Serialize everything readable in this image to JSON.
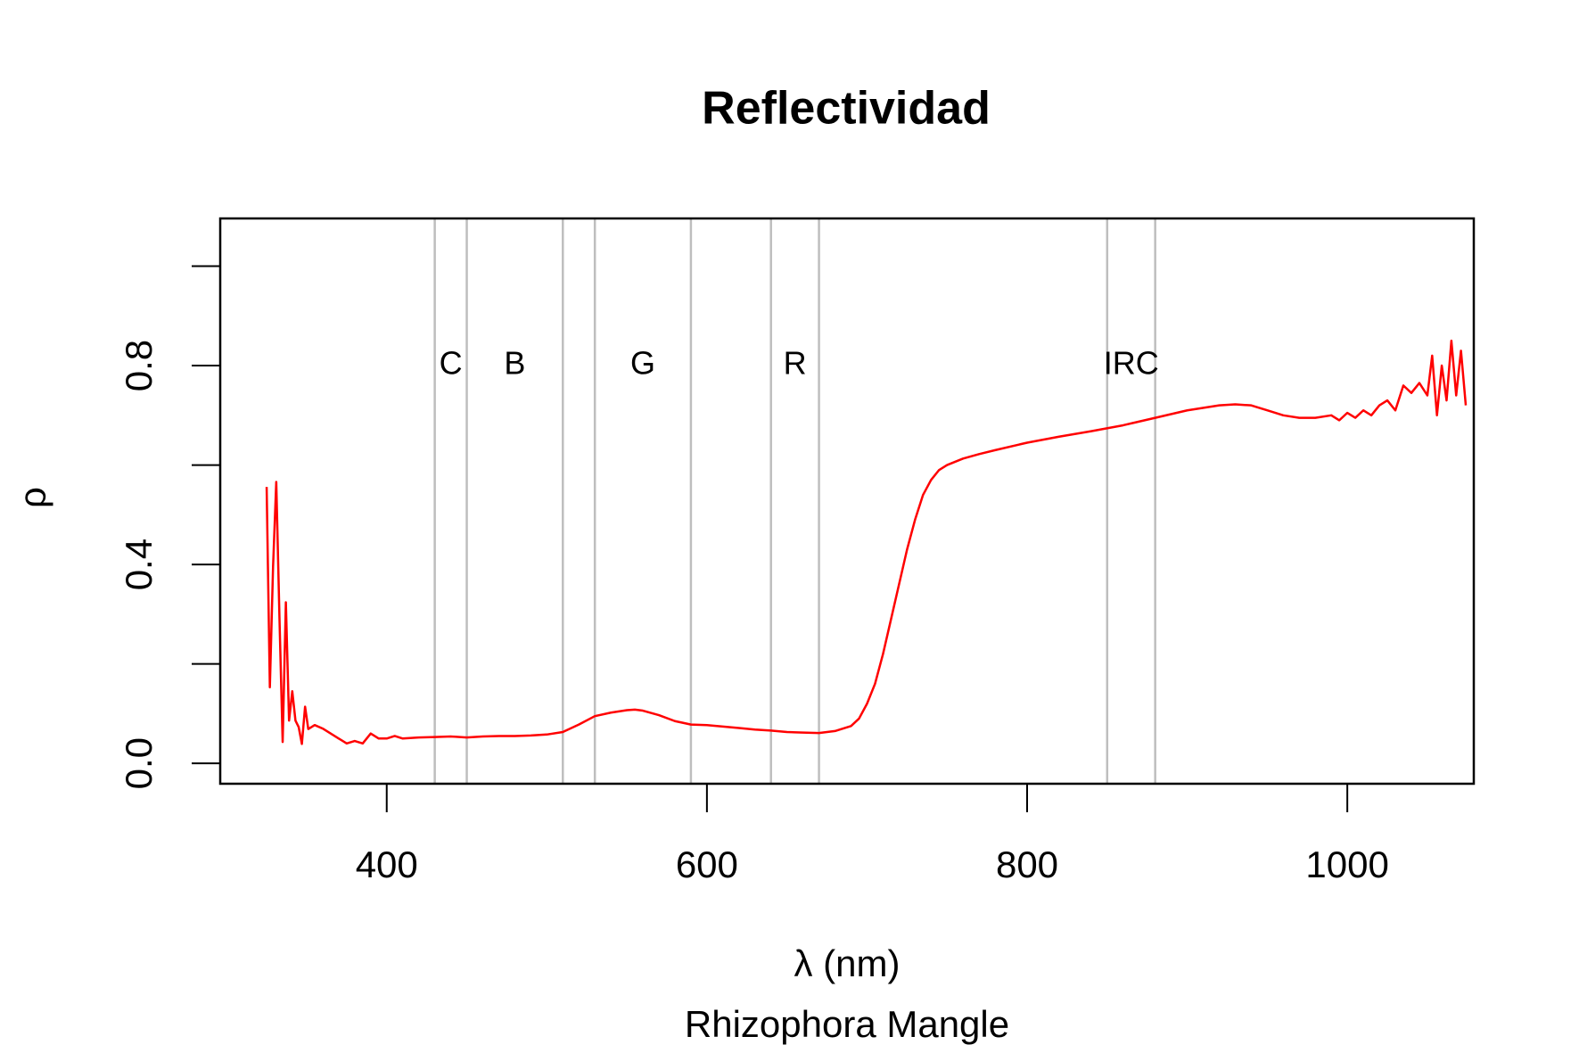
{
  "chart_data": {
    "type": "line",
    "title": "Reflectividad",
    "xlabel": "λ (nm)",
    "ylabel": "ρ",
    "subtitle": "Rhizophora Mangle",
    "color": "#ff0000",
    "xlim": [
      296,
      1079
    ],
    "ylim": [
      -0.041,
      1.096
    ],
    "xticks": [
      400,
      600,
      800,
      1000
    ],
    "yticks": [
      {
        "value": 0,
        "label": "0.0"
      },
      {
        "value": 0.2,
        "label": null
      },
      0.4,
      {
        "value": 0.6,
        "label": null
      },
      0.8,
      {
        "value": 1.0,
        "label": null
      }
    ],
    "vlines": [
      430,
      450,
      510,
      530,
      590,
      640,
      670,
      850,
      880
    ],
    "vline_color": "#bebebe",
    "annotations": [
      {
        "label": "C",
        "x": 440,
        "y": 0.8
      },
      {
        "label": "B",
        "x": 480,
        "y": 0.8
      },
      {
        "label": "G",
        "x": 560,
        "y": 0.8
      },
      {
        "label": "R",
        "x": 655,
        "y": 0.8
      },
      {
        "label": "IRC",
        "x": 865,
        "y": 0.8
      }
    ],
    "x": [
      325,
      327,
      329,
      331,
      333,
      335,
      337,
      339,
      341,
      343,
      345,
      347,
      349,
      351,
      355,
      360,
      365,
      370,
      375,
      380,
      385,
      390,
      395,
      400,
      405,
      410,
      420,
      430,
      440,
      450,
      460,
      470,
      480,
      490,
      500,
      510,
      520,
      530,
      540,
      550,
      555,
      560,
      570,
      580,
      590,
      600,
      610,
      620,
      630,
      640,
      650,
      660,
      670,
      680,
      690,
      695,
      700,
      705,
      710,
      715,
      720,
      725,
      730,
      735,
      740,
      745,
      750,
      760,
      770,
      780,
      800,
      820,
      840,
      860,
      880,
      900,
      920,
      930,
      940,
      950,
      960,
      970,
      980,
      990,
      995,
      1000,
      1005,
      1010,
      1015,
      1020,
      1025,
      1030,
      1035,
      1040,
      1045,
      1050,
      1053,
      1056,
      1059,
      1062,
      1065,
      1068,
      1071,
      1074
    ],
    "values": [
      0.556,
      0.153,
      0.395,
      0.566,
      0.293,
      0.043,
      0.324,
      0.086,
      0.145,
      0.086,
      0.073,
      0.039,
      0.114,
      0.069,
      0.077,
      0.07,
      0.06,
      0.05,
      0.04,
      0.045,
      0.04,
      0.06,
      0.05,
      0.05,
      0.055,
      0.05,
      0.052,
      0.053,
      0.054,
      0.052,
      0.054,
      0.055,
      0.055,
      0.056,
      0.058,
      0.063,
      0.078,
      0.095,
      0.102,
      0.107,
      0.108,
      0.106,
      0.097,
      0.085,
      0.078,
      0.077,
      0.074,
      0.071,
      0.068,
      0.066,
      0.063,
      0.062,
      0.061,
      0.065,
      0.075,
      0.09,
      0.12,
      0.16,
      0.22,
      0.29,
      0.36,
      0.43,
      0.49,
      0.54,
      0.57,
      0.59,
      0.6,
      0.613,
      0.622,
      0.63,
      0.645,
      0.657,
      0.668,
      0.68,
      0.695,
      0.71,
      0.72,
      0.722,
      0.72,
      0.71,
      0.7,
      0.695,
      0.695,
      0.7,
      0.69,
      0.705,
      0.695,
      0.71,
      0.7,
      0.72,
      0.73,
      0.71,
      0.76,
      0.745,
      0.765,
      0.74,
      0.82,
      0.7,
      0.8,
      0.73,
      0.85,
      0.74,
      0.83,
      0.72
    ]
  }
}
